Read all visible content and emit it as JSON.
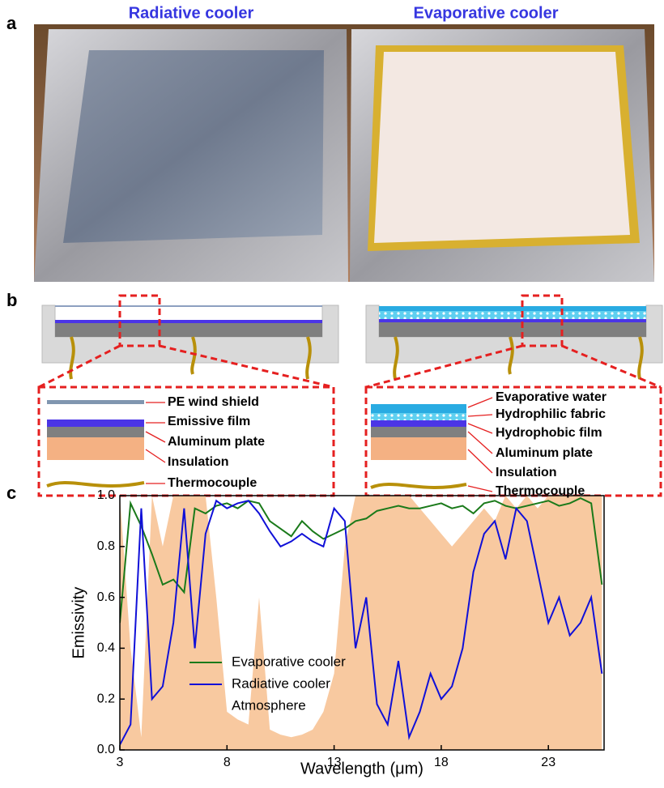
{
  "panel_a": {
    "label": "a",
    "titles": [
      "Radiative cooler",
      "Evaporative cooler"
    ]
  },
  "panel_b": {
    "label": "b",
    "left_layers": [
      "PE wind shield",
      "Emissive film",
      "Aluminum plate",
      "Insulation",
      "Thermocouple"
    ],
    "right_layers": [
      "Evaporative water",
      "Hydrophilic fabric",
      "Hydrophobic film",
      "Aluminum plate",
      "Insulation",
      "Thermocouple"
    ]
  },
  "chart_data": {
    "label": "c",
    "type": "line",
    "x_label": "Wavelength (μm)",
    "y_label": "Emissivity",
    "x": [
      3,
      3.5,
      4,
      4.5,
      5,
      5.5,
      6,
      6.5,
      7,
      7.5,
      8,
      8.5,
      9,
      9.5,
      10,
      10.5,
      11,
      11.5,
      12,
      12.5,
      13,
      13.5,
      14,
      14.5,
      15,
      15.5,
      16,
      16.5,
      17,
      17.5,
      18,
      18.5,
      19,
      19.5,
      20,
      20.5,
      21,
      21.5,
      22,
      22.5,
      23,
      23.5,
      24,
      24.5,
      25,
      25.5
    ],
    "series": [
      {
        "name": "Evaporative cooler",
        "color": "#1a7a1a",
        "type": "line",
        "values": [
          0.5,
          0.97,
          0.88,
          0.77,
          0.65,
          0.67,
          0.62,
          0.95,
          0.93,
          0.96,
          0.97,
          0.95,
          0.98,
          0.97,
          0.9,
          0.87,
          0.84,
          0.9,
          0.86,
          0.83,
          0.85,
          0.87,
          0.9,
          0.91,
          0.94,
          0.95,
          0.96,
          0.95,
          0.95,
          0.96,
          0.97,
          0.95,
          0.96,
          0.93,
          0.97,
          0.98,
          0.96,
          0.95,
          0.96,
          0.97,
          0.98,
          0.96,
          0.97,
          0.99,
          0.97,
          0.65
        ]
      },
      {
        "name": "Radiative cooler",
        "color": "#1010d8",
        "type": "line",
        "values": [
          0.02,
          0.1,
          0.95,
          0.2,
          0.25,
          0.5,
          0.95,
          0.4,
          0.85,
          0.98,
          0.95,
          0.97,
          0.98,
          0.93,
          0.86,
          0.8,
          0.82,
          0.85,
          0.82,
          0.8,
          0.95,
          0.9,
          0.4,
          0.6,
          0.18,
          0.1,
          0.35,
          0.05,
          0.15,
          0.3,
          0.2,
          0.25,
          0.4,
          0.7,
          0.85,
          0.9,
          0.75,
          0.95,
          0.9,
          0.7,
          0.5,
          0.6,
          0.45,
          0.5,
          0.6,
          0.3
        ]
      },
      {
        "name": "Atmosphere",
        "color": "#f8c9a0",
        "type": "area",
        "values": [
          1,
          0.4,
          0.05,
          1,
          0.8,
          1,
          1,
          1,
          1,
          0.6,
          0.15,
          0.12,
          0.1,
          0.6,
          0.08,
          0.06,
          0.05,
          0.06,
          0.08,
          0.15,
          0.3,
          0.8,
          1,
          1,
          1,
          1,
          1,
          1,
          0.95,
          0.9,
          0.85,
          0.8,
          0.85,
          0.9,
          0.95,
          0.9,
          1,
          0.95,
          1,
          0.95,
          1,
          1,
          1,
          1,
          1,
          1
        ]
      }
    ],
    "xlim": [
      3,
      25.6
    ],
    "xticks": [
      3,
      8,
      13,
      18,
      23
    ],
    "ylim": [
      0,
      1
    ],
    "yticks": [
      {
        "value": 0,
        "label": "0.0"
      },
      0.2,
      0.4,
      0.6,
      0.8,
      {
        "value": 1,
        "label": "1.0"
      }
    ],
    "grid": false,
    "legend": "lower left"
  }
}
